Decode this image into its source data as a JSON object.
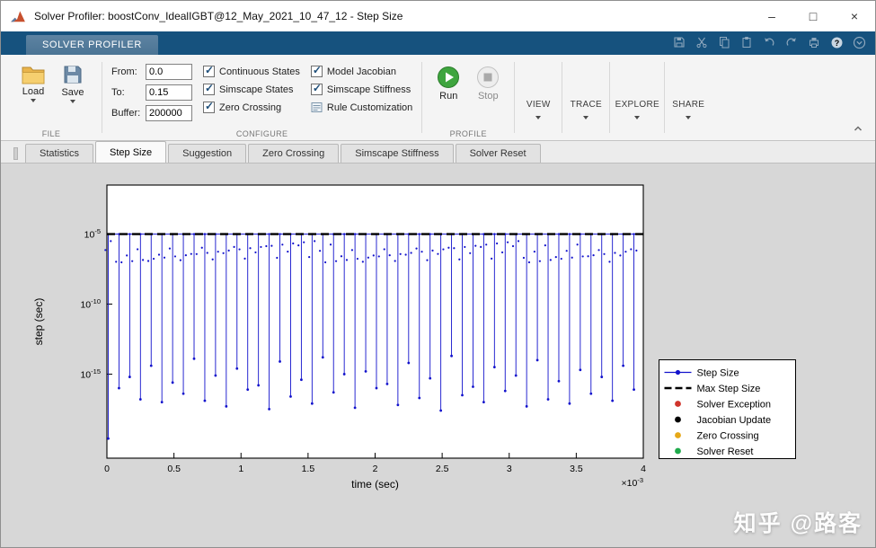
{
  "window": {
    "title": "Solver Profiler: boostConv_IdealIGBT@12_May_2021_10_47_12 - Step Size",
    "controls": {
      "minimize": "–",
      "maximize": "□",
      "close": "×"
    }
  },
  "ribbon": {
    "tab_label": "SOLVER PROFILER",
    "quick_access_icons": [
      "save",
      "cut",
      "copy",
      "paste",
      "undo",
      "redo",
      "print",
      "help",
      "options"
    ],
    "file": {
      "load": "Load",
      "save": "Save",
      "section": "FILE"
    },
    "configure": {
      "section": "CONFIGURE",
      "fields": [
        {
          "label": "From:",
          "value": "0.0"
        },
        {
          "label": "To:",
          "value": "0.15"
        },
        {
          "label": "Buffer:",
          "value": "200000"
        }
      ],
      "checkboxes": [
        {
          "label": "Continuous States",
          "checked": true
        },
        {
          "label": "Simscape States",
          "checked": true
        },
        {
          "label": "Zero Crossing",
          "checked": true
        },
        {
          "label": "Model Jacobian",
          "checked": true
        },
        {
          "label": "Simscape Stiffness",
          "checked": true
        }
      ],
      "rule_customization": {
        "label": "Rule Customization"
      }
    },
    "profile": {
      "run": "Run",
      "stop": "Stop",
      "section": "PROFILE"
    },
    "galleries": [
      "VIEW",
      "TRACE",
      "EXPLORE",
      "SHARE"
    ]
  },
  "doc_tabs": {
    "items": [
      "Statistics",
      "Step Size",
      "Suggestion",
      "Zero Crossing",
      "Simscape Stiffness",
      "Solver Reset"
    ],
    "active": "Step Size"
  },
  "chart_data": {
    "type": "line",
    "xlabel": "time (sec)",
    "ylabel": "step (sec)",
    "x_exp_label": {
      "base": "×10",
      "exp": "-3"
    },
    "xlim_ms": [
      0,
      4
    ],
    "x_ticks_ms": [
      0,
      0.5,
      1,
      1.5,
      2,
      2.5,
      3,
      3.5,
      4
    ],
    "x_tick_labels": [
      "0",
      "0.5",
      "1",
      "1.5",
      "2",
      "2.5",
      "3",
      "3.5",
      "4"
    ],
    "ylog_exp_range": [
      -21,
      -1.5
    ],
    "y_ticks_exp": [
      -5,
      -10,
      -15
    ],
    "max_step_exp": -5,
    "series_color": "#1212cc",
    "max_step_color": "#000000",
    "spikes": {
      "x_ms": [
        0.01,
        0.09,
        0.17,
        0.25,
        0.33,
        0.41,
        0.49,
        0.57,
        0.65,
        0.73,
        0.81,
        0.89,
        0.97,
        1.05,
        1.13,
        1.21,
        1.29,
        1.37,
        1.45,
        1.53,
        1.61,
        1.69,
        1.77,
        1.85,
        1.93,
        2.01,
        2.09,
        2.17,
        2.25,
        2.33,
        2.41,
        2.49,
        2.57,
        2.65,
        2.73,
        2.81,
        2.89,
        2.97,
        3.05,
        3.13,
        3.21,
        3.29,
        3.37,
        3.45,
        3.53,
        3.61,
        3.69,
        3.77,
        3.85,
        3.93
      ],
      "depth_exp": [
        -19.6,
        -16.0,
        -15.2,
        -16.8,
        -14.4,
        -17.0,
        -15.6,
        -16.4,
        -13.9,
        -16.9,
        -15.1,
        -17.3,
        -14.6,
        -16.1,
        -15.8,
        -17.5,
        -14.1,
        -16.6,
        -15.4,
        -17.1,
        -13.8,
        -16.3,
        -15.0,
        -17.4,
        -14.8,
        -16.0,
        -15.7,
        -17.2,
        -14.2,
        -16.7,
        -15.3,
        -17.6,
        -13.7,
        -16.5,
        -15.9,
        -17.0,
        -14.5,
        -16.2,
        -15.1,
        -17.3,
        -14.0,
        -16.8,
        -15.5,
        -17.1,
        -14.7,
        -16.4,
        -15.2,
        -16.9,
        -14.4,
        -16.1
      ]
    },
    "scatter_band": {
      "exp_top": -5.5,
      "exp_span": 1.6
    },
    "legend": [
      {
        "label": "Step Size",
        "marker": "line-dot",
        "color": "#1212cc"
      },
      {
        "label": "Max Step Size",
        "marker": "dash",
        "color": "#000000"
      },
      {
        "label": "Solver Exception",
        "marker": "dot",
        "color": "#d0342c"
      },
      {
        "label": "Jacobian Update",
        "marker": "dot",
        "color": "#000000"
      },
      {
        "label": "Zero Crossing",
        "marker": "dot",
        "color": "#e6a817"
      },
      {
        "label": "Solver Reset",
        "marker": "dot",
        "color": "#1faa4b"
      }
    ]
  },
  "watermark": {
    "text": "知乎 @路客"
  }
}
